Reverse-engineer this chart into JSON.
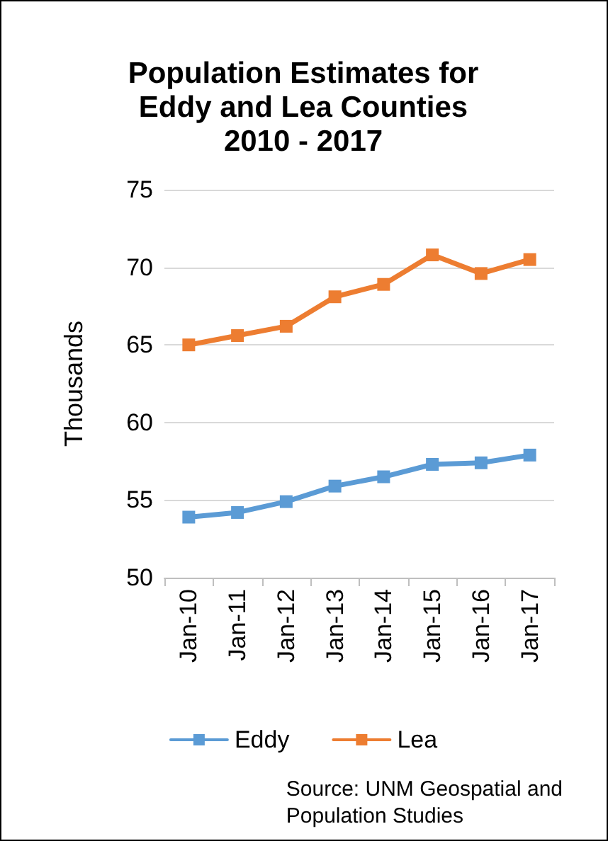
{
  "chart_data": {
    "type": "line",
    "title": "Population Estimates for\nEddy and Lea Counties\n2010 - 2017",
    "ylabel": "Thousands",
    "categories": [
      "Jan-10",
      "Jan-11",
      "Jan-12",
      "Jan-13",
      "Jan-14",
      "Jan-15",
      "Jan-16",
      "Jan-17"
    ],
    "series": [
      {
        "name": "Eddy",
        "color": "#5b9bd5",
        "values": [
          53.9,
          54.2,
          54.9,
          55.9,
          56.5,
          57.3,
          57.4,
          57.9
        ]
      },
      {
        "name": "Lea",
        "color": "#ed7d31",
        "values": [
          65.0,
          65.6,
          66.2,
          68.1,
          68.9,
          70.8,
          69.6,
          70.5
        ]
      }
    ],
    "ylim": [
      50,
      75
    ],
    "yticks": [
      50,
      55,
      60,
      65,
      70,
      75
    ],
    "grid": "y",
    "legend": "bottom",
    "marker": "square",
    "line_style": "solid",
    "annotations": [
      "Source: UNM Geospatial and\nPopulation Studies"
    ]
  }
}
